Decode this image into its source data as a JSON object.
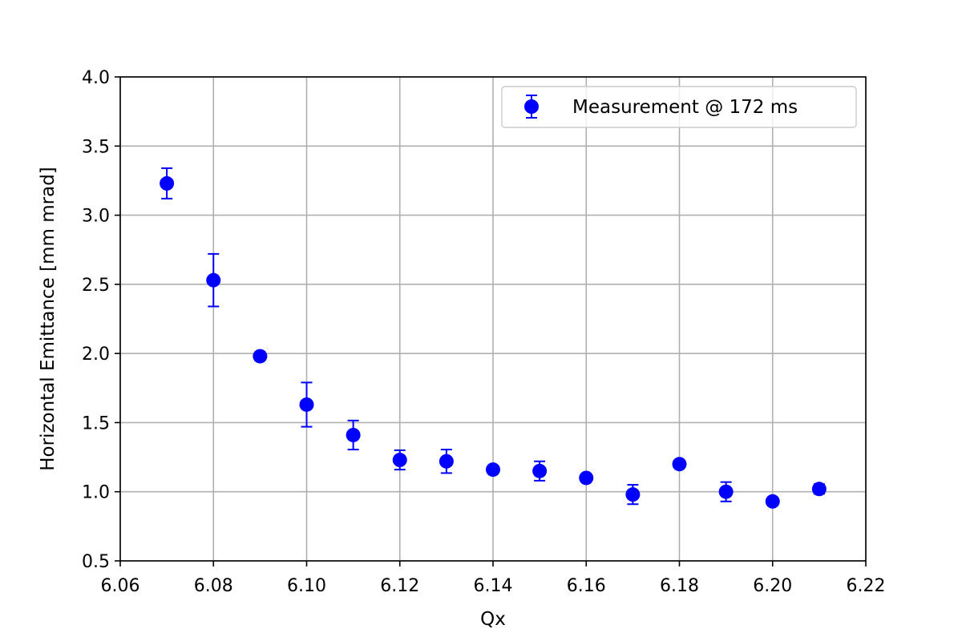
{
  "chart_data": {
    "type": "scatter",
    "title": "",
    "xlabel": "Qx",
    "ylabel": "Horizontal Emittance [mm mrad]",
    "xlim": [
      6.06,
      6.22
    ],
    "ylim": [
      0.5,
      4.0
    ],
    "xticks": [
      "6.06",
      "6.08",
      "6.10",
      "6.12",
      "6.14",
      "6.16",
      "6.18",
      "6.20",
      "6.22"
    ],
    "yticks": [
      "0.5",
      "1.0",
      "1.5",
      "2.0",
      "2.5",
      "3.0",
      "3.5",
      "4.0"
    ],
    "grid": true,
    "legend_position": "top-right",
    "series": [
      {
        "name": "Measurement @ 172 ms",
        "color": "#0000ff",
        "marker": "circle",
        "error_bars": true,
        "points": [
          {
            "x": 6.07,
            "y": 3.23,
            "yerr": 0.11
          },
          {
            "x": 6.08,
            "y": 2.53,
            "yerr": 0.19
          },
          {
            "x": 6.09,
            "y": 1.98,
            "yerr": 0.03
          },
          {
            "x": 6.1,
            "y": 1.63,
            "yerr": 0.16
          },
          {
            "x": 6.11,
            "y": 1.41,
            "yerr": 0.105
          },
          {
            "x": 6.12,
            "y": 1.23,
            "yerr": 0.07
          },
          {
            "x": 6.13,
            "y": 1.22,
            "yerr": 0.085
          },
          {
            "x": 6.14,
            "y": 1.16,
            "yerr": 0.0
          },
          {
            "x": 6.15,
            "y": 1.15,
            "yerr": 0.07
          },
          {
            "x": 6.16,
            "y": 1.1,
            "yerr": 0.0
          },
          {
            "x": 6.17,
            "y": 0.98,
            "yerr": 0.07
          },
          {
            "x": 6.18,
            "y": 1.2,
            "yerr": 0.0
          },
          {
            "x": 6.19,
            "y": 1.0,
            "yerr": 0.07
          },
          {
            "x": 6.2,
            "y": 0.93,
            "yerr": 0.0
          },
          {
            "x": 6.21,
            "y": 1.02,
            "yerr": 0.035
          }
        ]
      }
    ]
  }
}
